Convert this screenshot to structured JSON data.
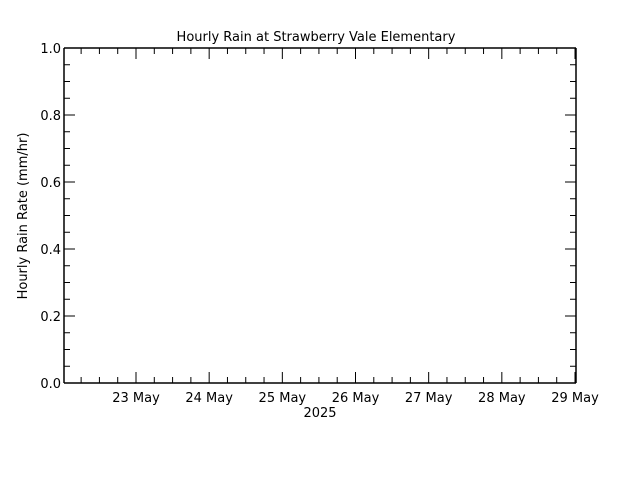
{
  "chart_data": {
    "type": "line",
    "title": "Hourly Rain at Strawberry Vale Elementary",
    "xlabel": "2025",
    "ylabel": "Hourly Rain Rate (mm/hr)",
    "ylim": [
      0.0,
      1.0
    ],
    "yticks": [
      "0.0",
      "0.2",
      "0.4",
      "0.6",
      "0.8",
      "1.0"
    ],
    "xticks": [
      "23 May",
      "24 May",
      "25 May",
      "26 May",
      "27 May",
      "28 May",
      "29 May"
    ],
    "grid": false,
    "legend": null,
    "series": [
      {
        "name": "Hourly Rain Rate",
        "x": [],
        "values": []
      }
    ]
  }
}
